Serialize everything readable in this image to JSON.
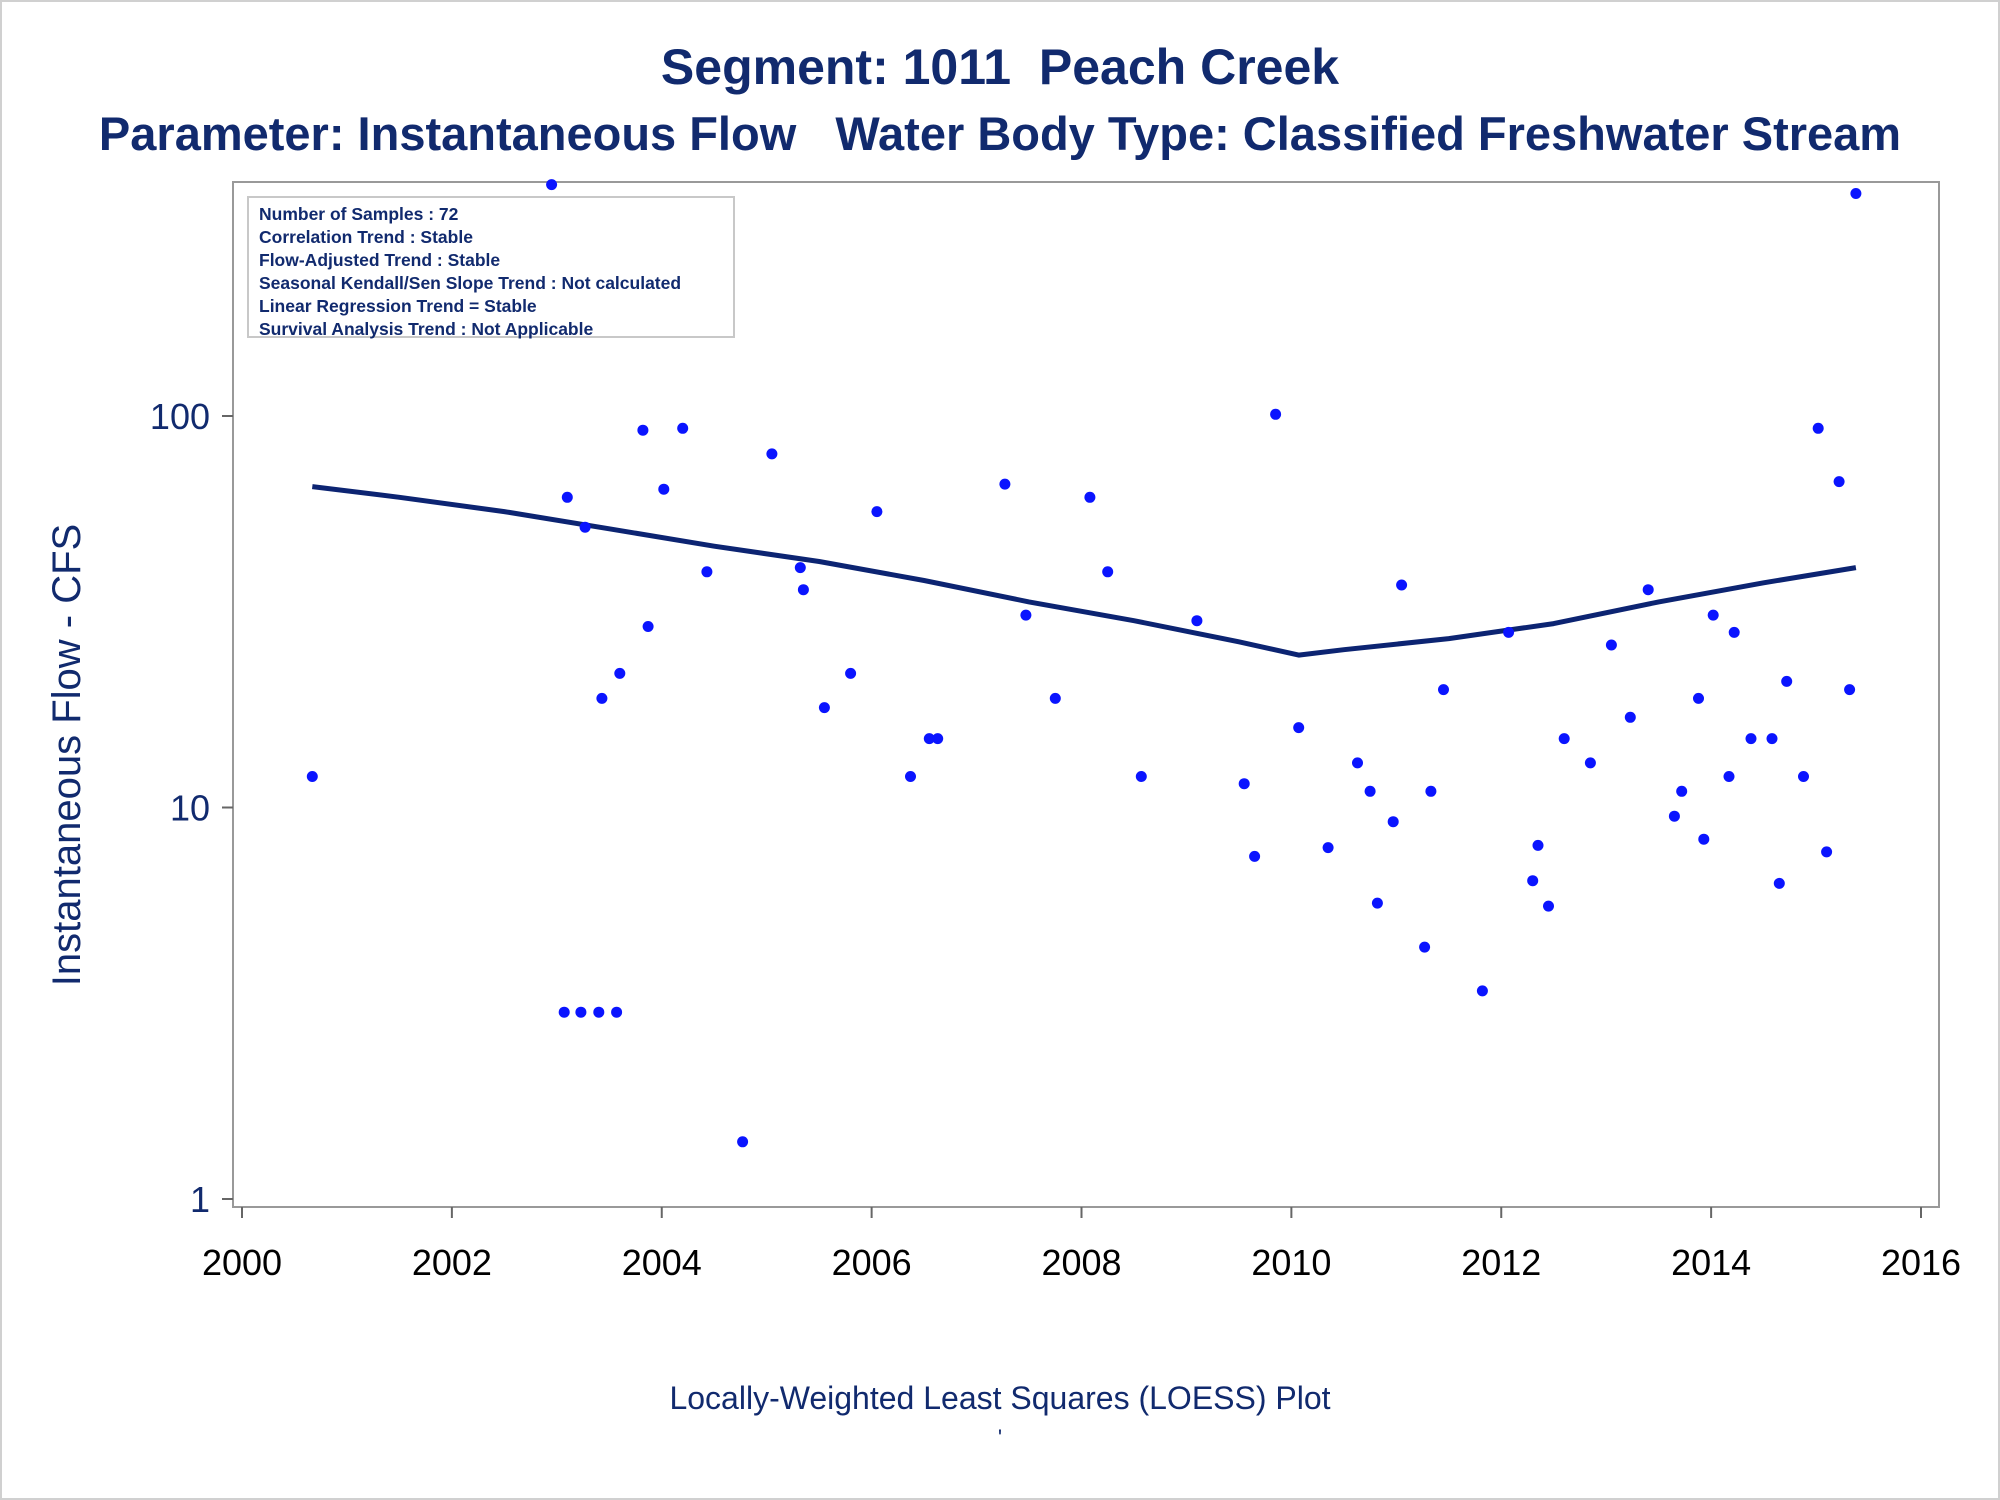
{
  "title": "Segment: 1011  Peach Creek",
  "subtitle": "Parameter: Instantaneous Flow   Water Body Type: Classified Freshwater Stream",
  "footnote": "Locally-Weighted Least Squares (LOESS) Plot",
  "footnote_mark": "'",
  "stats": [
    "Number of Samples : 72",
    "Correlation Trend : Stable",
    "Flow-Adjusted Trend : Stable",
    "Seasonal Kendall/Sen Slope Trend : Not calculated",
    "Linear Regression Trend = Stable",
    "Survival Analysis Trend : Not Applicable"
  ],
  "colors": {
    "text": "#112a6e",
    "points": "#0a14ff",
    "line": "#0c2472",
    "frame": "#999999"
  },
  "chart_data": {
    "type": "scatter",
    "title": "Segment: 1011  Peach Creek",
    "xlabel": "",
    "ylabel": "Instantaneous Flow - CFS",
    "y_scale": "log",
    "xlim": [
      2000,
      2016
    ],
    "ylim": [
      1,
      400
    ],
    "x_ticks": [
      2000,
      2002,
      2004,
      2006,
      2008,
      2010,
      2012,
      2014,
      2016
    ],
    "y_ticks": [
      1,
      10,
      100
    ],
    "y_tick_labels": [
      "1",
      "10",
      "100"
    ],
    "grid": false,
    "series": [
      {
        "type": "scatter",
        "points": [
          [
            2000.67,
            12
          ],
          [
            2002.95,
            390
          ],
          [
            2003.07,
            3
          ],
          [
            2003.1,
            62
          ],
          [
            2003.23,
            3
          ],
          [
            2003.27,
            52
          ],
          [
            2003.4,
            3
          ],
          [
            2003.43,
            19
          ],
          [
            2003.57,
            3
          ],
          [
            2003.6,
            22
          ],
          [
            2003.82,
            92
          ],
          [
            2003.87,
            29
          ],
          [
            2004.02,
            65
          ],
          [
            2004.2,
            93
          ],
          [
            2004.43,
            40
          ],
          [
            2004.77,
            1.4
          ],
          [
            2005.05,
            80
          ],
          [
            2005.32,
            41
          ],
          [
            2005.35,
            36
          ],
          [
            2005.55,
            18
          ],
          [
            2005.8,
            22
          ],
          [
            2006.05,
            57
          ],
          [
            2006.37,
            12
          ],
          [
            2006.55,
            15
          ],
          [
            2006.63,
            15
          ],
          [
            2007.27,
            67
          ],
          [
            2007.47,
            31
          ],
          [
            2007.75,
            19
          ],
          [
            2008.08,
            62
          ],
          [
            2008.25,
            40
          ],
          [
            2008.57,
            12
          ],
          [
            2009.1,
            30
          ],
          [
            2009.55,
            11.5
          ],
          [
            2009.65,
            7.5
          ],
          [
            2009.85,
            101
          ],
          [
            2010.07,
            16
          ],
          [
            2010.35,
            7.9
          ],
          [
            2010.63,
            13
          ],
          [
            2010.75,
            11
          ],
          [
            2010.82,
            5.7
          ],
          [
            2010.97,
            9.2
          ],
          [
            2011.05,
            37
          ],
          [
            2011.27,
            4.4
          ],
          [
            2011.33,
            11
          ],
          [
            2011.45,
            20
          ],
          [
            2011.82,
            3.4
          ],
          [
            2012.07,
            28
          ],
          [
            2012.3,
            6.5
          ],
          [
            2012.35,
            8.0
          ],
          [
            2012.45,
            5.6
          ],
          [
            2012.6,
            15
          ],
          [
            2012.85,
            13
          ],
          [
            2013.05,
            26
          ],
          [
            2013.23,
            17
          ],
          [
            2013.4,
            36
          ],
          [
            2013.65,
            9.5
          ],
          [
            2013.72,
            11
          ],
          [
            2013.88,
            19
          ],
          [
            2013.93,
            8.3
          ],
          [
            2014.02,
            31
          ],
          [
            2014.17,
            12
          ],
          [
            2014.22,
            28
          ],
          [
            2014.38,
            15
          ],
          [
            2014.58,
            15
          ],
          [
            2014.65,
            6.4
          ],
          [
            2014.72,
            21
          ],
          [
            2014.88,
            12
          ],
          [
            2015.02,
            93
          ],
          [
            2015.1,
            7.7
          ],
          [
            2015.22,
            68
          ],
          [
            2015.32,
            20
          ],
          [
            2015.38,
            370
          ]
        ]
      },
      {
        "type": "line",
        "points": [
          [
            2000.67,
            66
          ],
          [
            2001.5,
            62
          ],
          [
            2002.5,
            57
          ],
          [
            2003.5,
            51.5
          ],
          [
            2004.5,
            46.5
          ],
          [
            2005.5,
            42.5
          ],
          [
            2006.5,
            38
          ],
          [
            2007.5,
            33.5
          ],
          [
            2008.5,
            30
          ],
          [
            2009.5,
            26.5
          ],
          [
            2010.07,
            24.5
          ],
          [
            2010.5,
            25.3
          ],
          [
            2011.5,
            27
          ],
          [
            2012.5,
            29.5
          ],
          [
            2013.5,
            33.5
          ],
          [
            2014.5,
            37.5
          ],
          [
            2015.38,
            41
          ]
        ]
      }
    ]
  }
}
